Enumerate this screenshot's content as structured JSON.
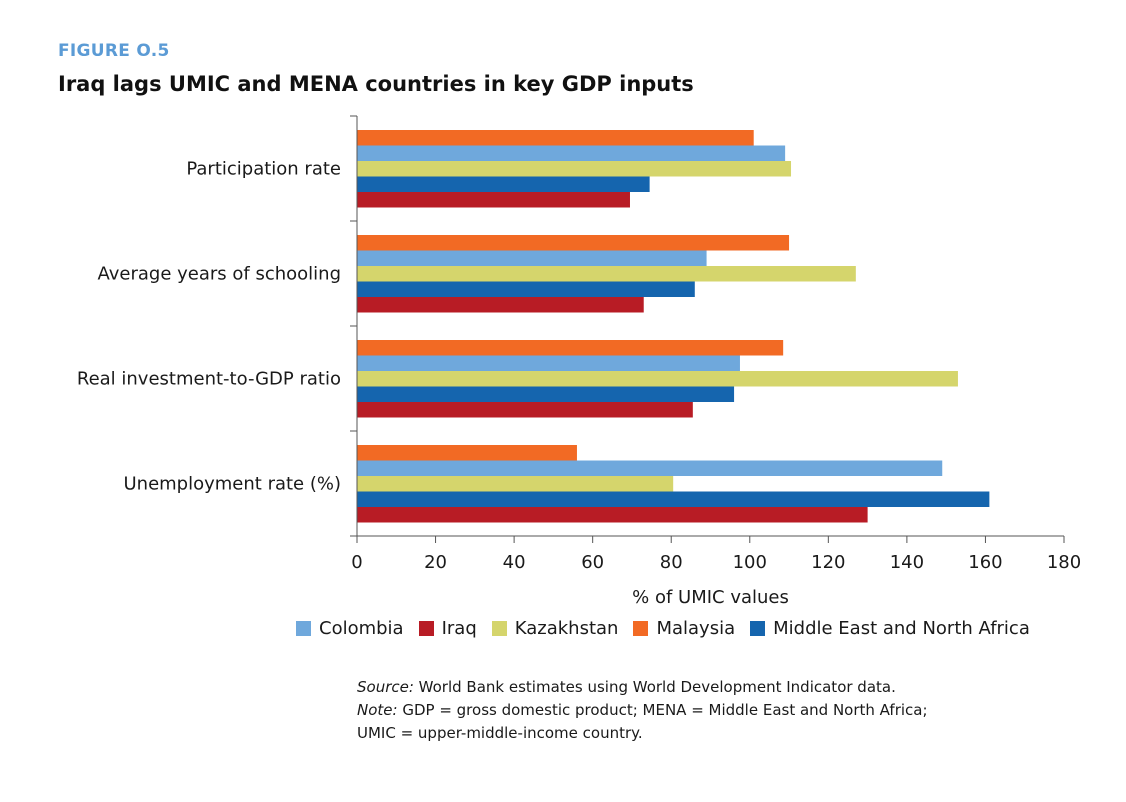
{
  "figure": {
    "label": "FIGURE O.5",
    "title": "Iraq lags UMIC and MENA countries in key GDP inputs"
  },
  "chart_data": {
    "type": "bar",
    "orientation": "horizontal",
    "categories": [
      "Participation rate",
      "Average years of schooling",
      "Real investment-to-GDP ratio",
      "Unemployment rate (%)"
    ],
    "series": [
      {
        "name": "Malaysia",
        "color": "#f26a24",
        "values": [
          101,
          110,
          108.5,
          56
        ]
      },
      {
        "name": "Colombia",
        "color": "#6fa8dc",
        "values": [
          109,
          89,
          97.5,
          149
        ]
      },
      {
        "name": "Kazakhstan",
        "color": "#d5d56c",
        "values": [
          110.5,
          127,
          153,
          80.5
        ]
      },
      {
        "name": "Middle East and North Africa",
        "color": "#1565ae",
        "values": [
          74.5,
          86,
          96,
          161
        ]
      },
      {
        "name": "Iraq",
        "color": "#b81c25",
        "values": [
          69.5,
          73,
          85.5,
          130
        ]
      }
    ],
    "xlabel": "% of UMIC values",
    "ylabel": "",
    "xlim": [
      0,
      180
    ],
    "xticks": [
      0,
      20,
      40,
      60,
      80,
      100,
      120,
      140,
      160,
      180
    ],
    "grid": false,
    "legend_position": "bottom",
    "legend_order": [
      "Colombia",
      "Iraq",
      "Kazakhstan",
      "Malaysia",
      "Middle East and North Africa"
    ]
  },
  "notes": {
    "source_label": "Source:",
    "source_text": " World Bank estimates using World Development Indicator data.",
    "note_label": "Note:",
    "note_text": " GDP = gross domestic product; MENA = Middle East and North Africa;",
    "note_text2": "UMIC = upper-middle-income country."
  }
}
